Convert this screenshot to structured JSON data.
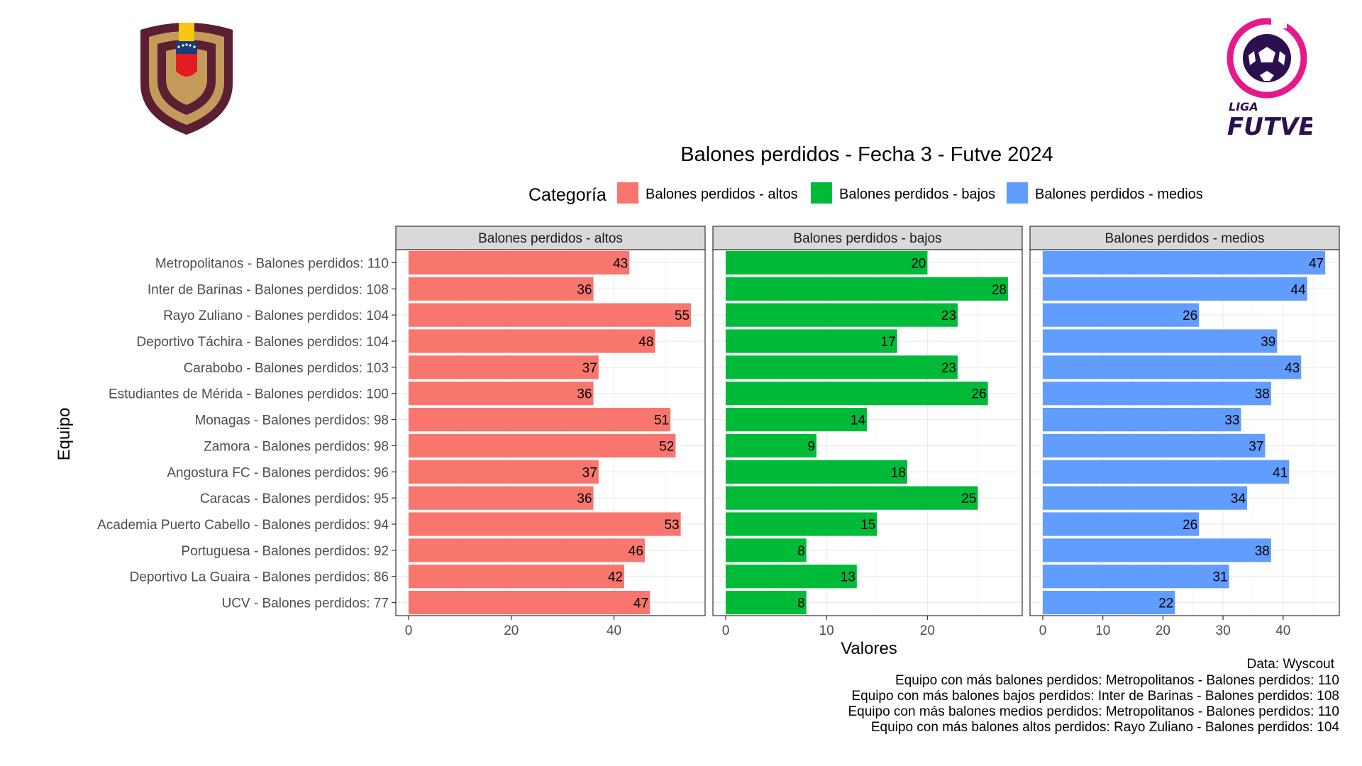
{
  "logos": {
    "right_brand_top": "LIGA",
    "right_brand_bottom": "FUTVE"
  },
  "colors": {
    "altos": "#F8766D",
    "bajos": "#00BA38",
    "medios": "#619CFF",
    "strip_bg": "#D9D9D9",
    "panel_border": "#333333",
    "grid": "#EBEBEB"
  },
  "chart_data": {
    "type": "bar",
    "orientation": "horizontal",
    "title": "Balones perdidos - Fecha 3 - Futve 2024",
    "xlabel": "Valores",
    "ylabel": "Equipo",
    "legend_title": "Categoría",
    "legend_position": "top",
    "grid": true,
    "categories": [
      "Metropolitanos - Balones perdidos: 110",
      "Inter de Barinas - Balones perdidos: 108",
      "Rayo Zuliano - Balones perdidos: 104",
      "Deportivo Táchira - Balones perdidos: 104",
      "Carabobo - Balones perdidos: 103",
      "Estudiantes de Mérida - Balones perdidos: 100",
      "Monagas - Balones perdidos: 98",
      "Zamora - Balones perdidos: 98",
      "Angostura FC - Balones perdidos: 96",
      "Caracas - Balones perdidos: 95",
      "Academia Puerto Cabello - Balones perdidos: 94",
      "Portuguesa - Balones perdidos: 92",
      "Deportivo La Guaira - Balones perdidos: 86",
      "UCV - Balones perdidos: 77"
    ],
    "series": [
      {
        "name": "Balones perdidos - altos",
        "color_key": "altos",
        "xlim": [
          0,
          57.75
        ],
        "ticks": [
          0,
          20,
          40
        ],
        "values": [
          43,
          36,
          55,
          48,
          37,
          36,
          51,
          52,
          37,
          36,
          53,
          46,
          42,
          47
        ]
      },
      {
        "name": "Balones perdidos - bajos",
        "color_key": "bajos",
        "xlim": [
          0,
          29.4
        ],
        "ticks": [
          0,
          10,
          20
        ],
        "values": [
          20,
          28,
          23,
          17,
          23,
          26,
          14,
          9,
          18,
          25,
          15,
          8,
          13,
          8
        ]
      },
      {
        "name": "Balones perdidos - medios",
        "color_key": "medios",
        "xlim": [
          0,
          49.35
        ],
        "ticks": [
          0,
          10,
          20,
          30,
          40
        ],
        "values": [
          47,
          44,
          26,
          39,
          43,
          38,
          33,
          37,
          41,
          34,
          26,
          38,
          31,
          22
        ]
      }
    ],
    "caption": [
      "Data: Wyscout",
      "Equipo con más balones perdidos: Metropolitanos - Balones perdidos: 110",
      "Equipo con más balones bajos perdidos: Inter de Barinas - Balones perdidos: 108",
      "Equipo con más balones medios perdidos: Metropolitanos - Balones perdidos: 110",
      "Equipo con más balones altos perdidos: Rayo Zuliano - Balones perdidos: 104"
    ]
  }
}
